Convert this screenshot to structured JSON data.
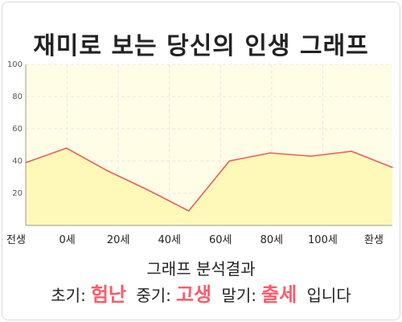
{
  "title": "재미로 보는 당신의 인생 그래프",
  "chart_data": {
    "type": "area",
    "title": "재미로 보는 당신의 인생 그래프",
    "x_labels": [
      "전생",
      "0세",
      "20세",
      "40세",
      "60세",
      "80세",
      "100세",
      "환생"
    ],
    "ylim": [
      0,
      100
    ],
    "yticks": [
      20,
      40,
      60,
      80,
      100
    ],
    "grid": true,
    "series": [
      {
        "values": [
          39,
          48,
          34,
          22,
          9,
          40,
          45,
          43,
          46,
          36
        ]
      }
    ],
    "colors": {
      "line": "#ee5d5d",
      "fill": "#fff9b6",
      "plot_bg": "#fffde6",
      "grid": "#e8e8e8"
    }
  },
  "result": {
    "heading": "그래프 분석결과",
    "early_label": "초기:",
    "early_value": "험난",
    "mid_label": "중기:",
    "mid_value": "고생",
    "late_label": "말기:",
    "late_value": "출세",
    "suffix": "입니다"
  }
}
